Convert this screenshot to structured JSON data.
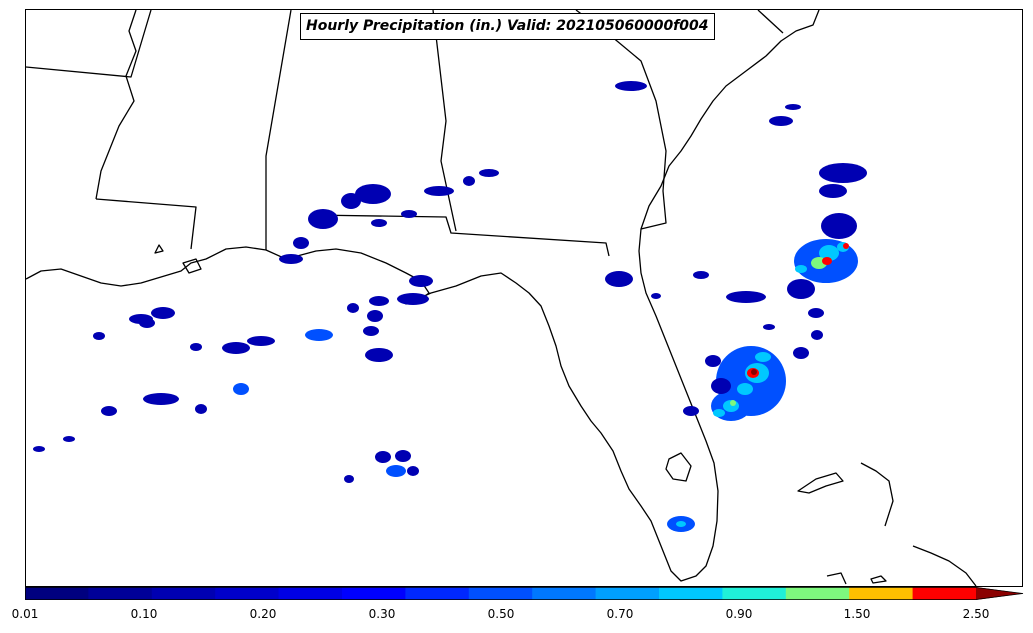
{
  "title": "Hourly Precipitation (in.) Valid: 202105060000f004",
  "colorbar": {
    "tick_labels": [
      "0.01",
      "0.10",
      "0.20",
      "0.30",
      "0.50",
      "0.70",
      "0.90",
      "1.50",
      "2.50"
    ],
    "colors": [
      "#00007f",
      "#000098",
      "#0000b2",
      "#0000cb",
      "#0000e5",
      "#0000ff",
      "#0028ff",
      "#0050ff",
      "#0078ff",
      "#00a0ff",
      "#00c8ff",
      "#20f0d8",
      "#7ef87e",
      "#ffc000",
      "#ff0000",
      "#8b0000"
    ],
    "extend": "max"
  },
  "precip_colors": {
    "light": "#0000b2",
    "moderate": "#0050ff",
    "heavy": "#00c8ff",
    "very_heavy": "#7ef87e",
    "extreme": "#ff0000",
    "max": "#8b0000"
  }
}
